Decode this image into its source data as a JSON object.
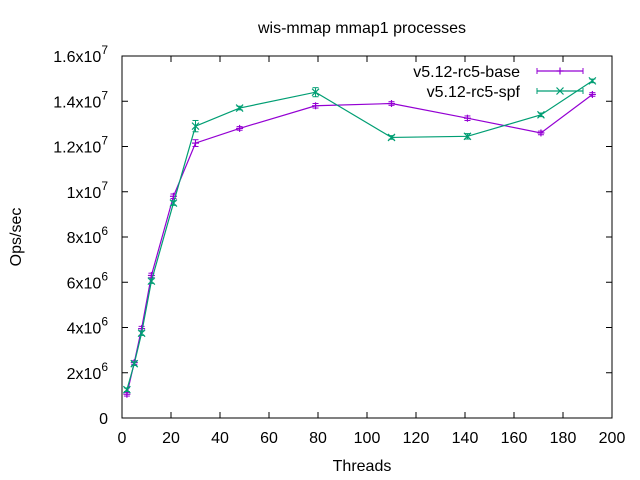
{
  "chart_data": {
    "type": "line",
    "title": "wis-mmap mmap1 processes",
    "xlabel": "Threads",
    "ylabel": "Ops/sec",
    "xlim": [
      0,
      200
    ],
    "ylim": [
      0,
      16000000
    ],
    "x_ticks": [
      "0",
      "20",
      "40",
      "60",
      "80",
      "100",
      "120",
      "140",
      "160",
      "180",
      "200"
    ],
    "y_ticks": [
      {
        "value": 0,
        "base": "0",
        "exp": ""
      },
      {
        "value": 2000000,
        "base": "2x10",
        "exp": "6"
      },
      {
        "value": 4000000,
        "base": "4x10",
        "exp": "6"
      },
      {
        "value": 6000000,
        "base": "6x10",
        "exp": "6"
      },
      {
        "value": 8000000,
        "base": "8x10",
        "exp": "6"
      },
      {
        "value": 10000000,
        "base": "1x10",
        "exp": "7"
      },
      {
        "value": 12000000,
        "base": "1.2x10",
        "exp": "7"
      },
      {
        "value": 14000000,
        "base": "1.4x10",
        "exp": "7"
      },
      {
        "value": 16000000,
        "base": "1.6x10",
        "exp": "7"
      }
    ],
    "grid": false,
    "legend_position": "top-right",
    "series": [
      {
        "name": "v5.12-rc5-base",
        "color": "#9400d3",
        "marker": "plus",
        "x": [
          2,
          5,
          8,
          12,
          21,
          30,
          48,
          79,
          110,
          141,
          171,
          192
        ],
        "y": [
          1050000,
          2450000,
          3950000,
          6300000,
          9800000,
          12150000,
          12800000,
          13800000,
          13900000,
          13250000,
          12600000,
          14300000
        ],
        "err": [
          80000,
          80000,
          100000,
          100000,
          100000,
          150000,
          80000,
          100000,
          80000,
          100000,
          80000,
          80000
        ]
      },
      {
        "name": "v5.12-rc5-spf",
        "color": "#009e73",
        "marker": "cross",
        "x": [
          2,
          5,
          8,
          12,
          21,
          30,
          48,
          79,
          110,
          141,
          171,
          192
        ],
        "y": [
          1250000,
          2400000,
          3750000,
          6050000,
          9500000,
          12900000,
          13700000,
          14400000,
          12400000,
          12450000,
          13400000,
          14900000
        ],
        "err": [
          80000,
          80000,
          100000,
          100000,
          100000,
          250000,
          80000,
          200000,
          80000,
          120000,
          80000,
          80000
        ]
      }
    ]
  }
}
